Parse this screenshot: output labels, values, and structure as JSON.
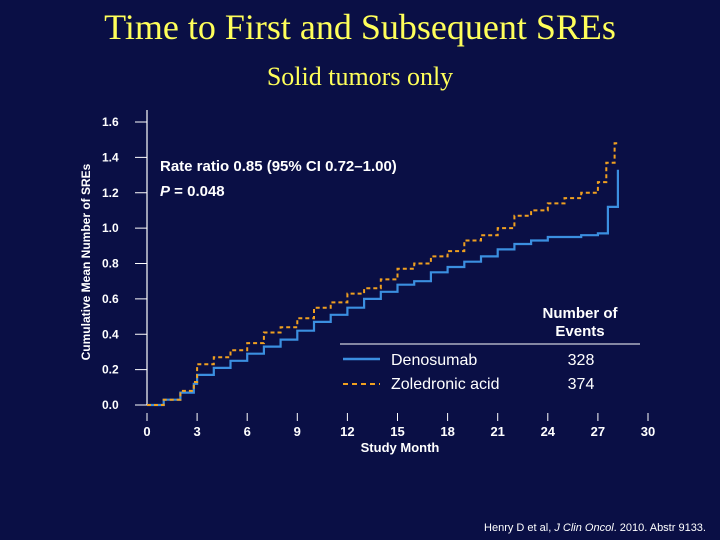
{
  "slide": {
    "title": "Time to First and Subsequent SREs",
    "subtitle": "Solid tumors only"
  },
  "annotation": {
    "line1": "Rate ratio 0.85 (95% CI 0.72–1.00)",
    "line2_italic": "P",
    "line2_rest": " = 0.048"
  },
  "legend": {
    "header_line1": "Number of",
    "header_line2": "Events"
  },
  "citation": {
    "authors": "Henry D et al, ",
    "journal": "J Clin Oncol",
    "rest": ". 2010. Abstr 9133."
  },
  "colors": {
    "background": "#0a0f45",
    "title": "#ffff5a",
    "denosumab": "#3b8fe0",
    "zoledronic": "#f0a020",
    "text": "#ffffff"
  },
  "chart_data": {
    "type": "line",
    "xlabel": "Study Month",
    "ylabel": "Cumulative Mean Number of SREs",
    "xlim": [
      0,
      30
    ],
    "ylim": [
      0,
      1.6
    ],
    "xticks": [
      0,
      3,
      6,
      9,
      12,
      15,
      18,
      21,
      24,
      27,
      30
    ],
    "yticks": [
      0.0,
      0.2,
      0.4,
      0.6,
      0.8,
      1.0,
      1.2,
      1.4,
      1.6
    ],
    "ytick_labels": [
      "0.0",
      "0.2",
      "0.4",
      "0.6",
      "0.8",
      "1.0",
      "1.2",
      "1.4",
      "1.6"
    ],
    "legend_position": "lower-right",
    "series": [
      {
        "name": "Denosumab",
        "events": 328,
        "line_style": "solid",
        "x": [
          0,
          1,
          2,
          2.8,
          3,
          4,
          5,
          6,
          7,
          8,
          9,
          10,
          11,
          12,
          13,
          14,
          15,
          16,
          17,
          18,
          19,
          20,
          21,
          22,
          23,
          24,
          25,
          26,
          27,
          27.6,
          28.2
        ],
        "y": [
          0,
          0.03,
          0.07,
          0.12,
          0.17,
          0.21,
          0.25,
          0.29,
          0.33,
          0.37,
          0.42,
          0.47,
          0.51,
          0.55,
          0.6,
          0.64,
          0.68,
          0.7,
          0.75,
          0.78,
          0.81,
          0.84,
          0.88,
          0.91,
          0.93,
          0.95,
          0.95,
          0.96,
          0.97,
          1.12,
          1.33
        ]
      },
      {
        "name": "Zoledronic acid",
        "events": 374,
        "line_style": "dashed",
        "x": [
          0,
          1,
          2,
          2.8,
          3,
          4,
          5,
          6,
          7,
          8,
          9,
          10,
          11,
          12,
          13,
          14,
          15,
          16,
          17,
          18,
          19,
          20,
          21,
          22,
          23,
          24,
          25,
          26,
          27,
          27.5,
          28,
          28.3
        ],
        "y": [
          0,
          0.03,
          0.08,
          0.13,
          0.23,
          0.27,
          0.31,
          0.35,
          0.41,
          0.44,
          0.49,
          0.55,
          0.58,
          0.63,
          0.66,
          0.71,
          0.77,
          0.8,
          0.84,
          0.87,
          0.93,
          0.96,
          1.0,
          1.07,
          1.1,
          1.14,
          1.17,
          1.2,
          1.26,
          1.37,
          1.48,
          1.48
        ]
      }
    ]
  }
}
